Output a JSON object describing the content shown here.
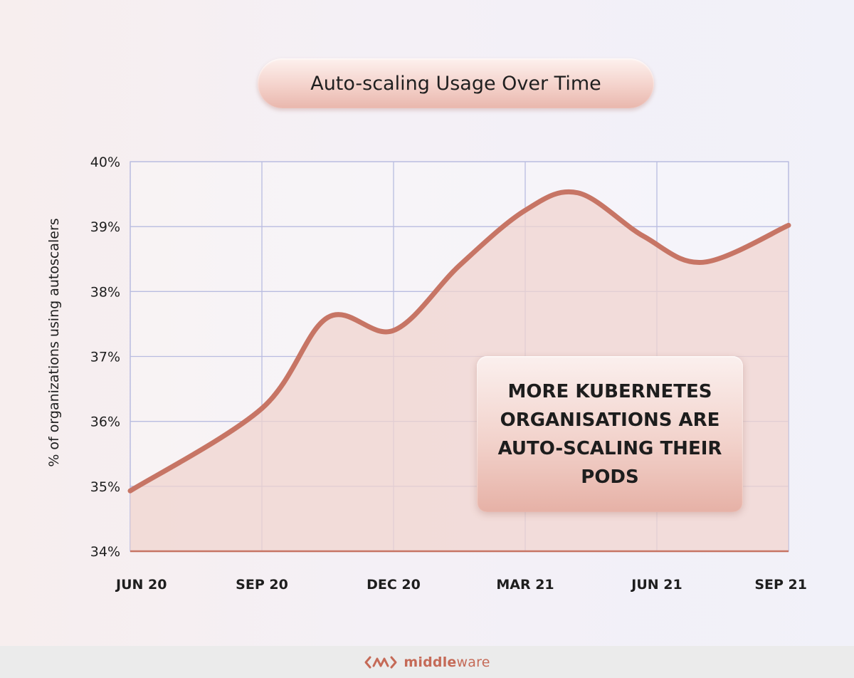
{
  "chart_data": {
    "type": "area",
    "title": "Auto-scaling Usage Over Time",
    "xlabel": "",
    "ylabel": "% of organizations using autoscalers",
    "ylim": [
      34,
      40
    ],
    "y_ticks": [
      "34%",
      "35%",
      "36%",
      "37%",
      "38%",
      "39%",
      "40%"
    ],
    "x_ticks": [
      "JUN 20",
      "SEP 20",
      "DEC 20",
      "MAR 21",
      "JUN 21",
      "SEP 21"
    ],
    "grid": true,
    "x": [
      0,
      1,
      1.5,
      2,
      2.5,
      3,
      3.4,
      3.9,
      4.35,
      5
    ],
    "values": [
      34.93,
      36.2,
      37.6,
      37.4,
      38.4,
      39.25,
      39.52,
      38.85,
      38.45,
      39.02
    ],
    "line_color": "#c77565",
    "fill_color": "#f0d4cf",
    "annotation": "MORE KUBERNETES ORGANISATIONS ARE AUTO-SCALING THEIR PODS"
  },
  "footer": {
    "brand_prefix": "middle",
    "brand_suffix": "ware",
    "logo_icon": "middleware-logo-icon"
  }
}
